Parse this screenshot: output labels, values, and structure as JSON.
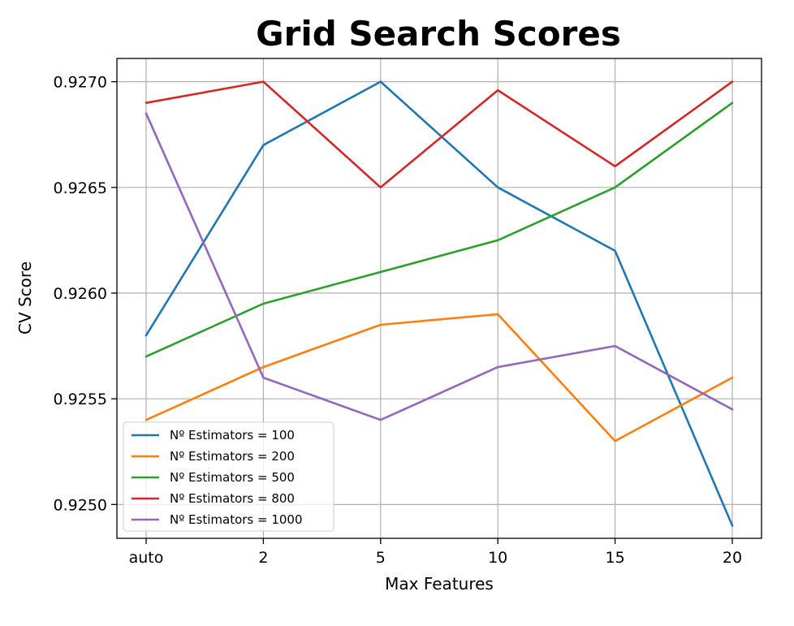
{
  "chart_data": {
    "type": "line",
    "title": "Grid Search Scores",
    "xlabel": "Max Features",
    "ylabel": "CV Score",
    "categories": [
      "auto",
      "2",
      "5",
      "10",
      "15",
      "20"
    ],
    "ylim": [
      0.92484,
      0.92711
    ],
    "yticks": [
      0.925,
      0.9255,
      0.926,
      0.9265,
      0.927
    ],
    "ytick_labels": [
      "0.9250",
      "0.9255",
      "0.9260",
      "0.9265",
      "0.9270"
    ],
    "grid": true,
    "legend_position": "lower-left",
    "series": [
      {
        "name": "Nº Estimators = 100",
        "color": "#1f77b4",
        "values": [
          0.9258,
          0.9267,
          0.927,
          0.9265,
          0.9262,
          0.9249
        ]
      },
      {
        "name": "Nº Estimators = 200",
        "color": "#ff7f0e",
        "values": [
          0.9254,
          0.92565,
          0.92585,
          0.9259,
          0.9253,
          0.9256
        ]
      },
      {
        "name": "Nº Estimators = 500",
        "color": "#2ca02c",
        "values": [
          0.9257,
          0.92595,
          0.9261,
          0.92625,
          0.9265,
          0.9269
        ]
      },
      {
        "name": "Nº Estimators = 800",
        "color": "#d62728",
        "values": [
          0.9269,
          0.927,
          0.9265,
          0.92696,
          0.9266,
          0.927
        ]
      },
      {
        "name": "Nº Estimators = 1000",
        "color": "#9467bd",
        "values": [
          0.92685,
          0.9256,
          0.9254,
          0.92565,
          0.92575,
          0.92545
        ]
      }
    ]
  }
}
